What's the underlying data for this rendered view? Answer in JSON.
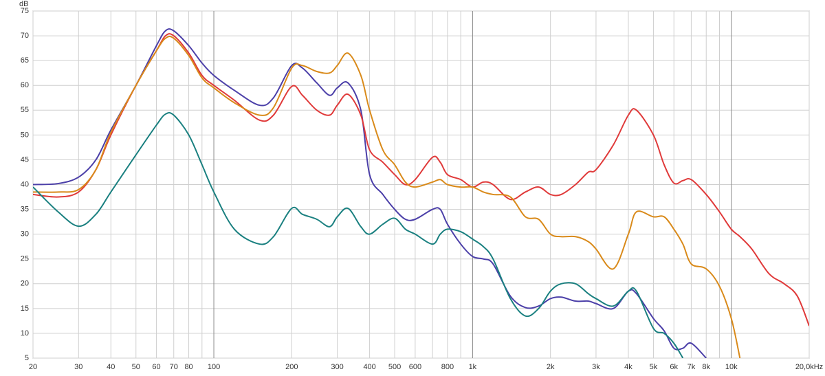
{
  "chart_data": {
    "type": "line",
    "y_axis_label": "dB",
    "log_x": true,
    "grid": true,
    "xlim": [
      20,
      20000
    ],
    "ylim": [
      5,
      75
    ],
    "yticks": [
      5,
      10,
      15,
      20,
      25,
      30,
      35,
      40,
      45,
      50,
      55,
      60,
      65,
      70,
      75
    ],
    "xticks": [
      20,
      30,
      40,
      50,
      60,
      70,
      80,
      100,
      200,
      300,
      400,
      500,
      600,
      800,
      {
        "value": 1000,
        "label": "1k"
      },
      {
        "value": 2000,
        "label": "2k"
      },
      {
        "value": 3000,
        "label": "3k"
      },
      {
        "value": 4000,
        "label": "4k"
      },
      {
        "value": 5000,
        "label": "5k"
      },
      {
        "value": 6000,
        "label": "6k"
      },
      {
        "value": 7000,
        "label": "7k"
      },
      {
        "value": 8000,
        "label": "8k"
      },
      {
        "value": 10000,
        "label": "10k"
      },
      {
        "value": 20000,
        "label": "20,0kHz"
      }
    ],
    "xgrid": [
      90,
      700,
      900,
      9000
    ],
    "x": [
      20,
      25,
      30,
      35,
      40,
      50,
      60,
      65,
      70,
      80,
      90,
      100,
      120,
      150,
      170,
      200,
      220,
      250,
      280,
      300,
      330,
      370,
      400,
      450,
      500,
      550,
      600,
      700,
      750,
      800,
      900,
      1000,
      1100,
      1200,
      1400,
      1600,
      1800,
      2000,
      2200,
      2500,
      2800,
      3000,
      3500,
      4000,
      4300,
      5000,
      5500,
      6000,
      6500,
      7000,
      8000,
      9000,
      10000,
      10800,
      12000,
      14000,
      16000,
      18000,
      20000
    ],
    "series": [
      {
        "color": "#4b3fa8",
        "values": [
          40,
          40.2,
          41.5,
          45,
          51,
          60,
          68,
          71,
          71,
          68,
          64.5,
          62,
          59,
          56,
          57.5,
          64,
          63.5,
          60.5,
          58,
          59.5,
          60.5,
          55,
          42,
          38,
          35,
          33,
          33,
          35,
          35,
          32,
          28,
          25.5,
          25,
          24,
          17.5,
          15.2,
          15.5,
          17,
          17.3,
          16.5,
          16.5,
          16,
          15,
          18.5,
          18,
          13,
          10.5,
          7,
          7,
          8,
          5,
          null,
          null,
          null,
          null,
          null,
          null,
          null,
          null
        ]
      },
      {
        "color": "#e03a3a",
        "values": [
          38,
          37.5,
          38.5,
          43,
          50,
          60,
          67,
          70,
          70,
          66.5,
          62,
          60,
          57,
          53,
          54,
          59.8,
          58,
          55,
          54,
          56,
          58.2,
          54,
          47,
          44.5,
          42,
          40,
          41,
          45.5,
          44.5,
          42,
          41,
          39.5,
          40.5,
          40,
          37,
          38.5,
          39.5,
          38,
          38,
          40,
          42.5,
          43,
          48,
          54,
          55,
          50,
          44,
          40.3,
          40.8,
          41,
          38,
          34.5,
          31,
          29.5,
          27,
          22,
          20,
          17.5,
          11.5
        ]
      },
      {
        "color": "#d98a1a",
        "values": [
          38.5,
          38.5,
          39,
          43,
          50.5,
          60,
          67,
          69.5,
          69.5,
          66,
          61.5,
          59.5,
          56.5,
          54,
          55.5,
          63.5,
          64,
          62.8,
          62.5,
          64,
          66.5,
          62,
          55,
          47,
          44,
          40.5,
          39.5,
          40.5,
          41,
          40,
          39.5,
          39.5,
          38.5,
          38,
          37.5,
          33.5,
          33,
          30,
          29.5,
          29.5,
          28.5,
          27,
          23,
          30,
          34.5,
          33.5,
          33.5,
          31,
          28,
          24,
          23,
          19.5,
          13,
          5,
          null,
          null,
          null,
          null,
          null
        ]
      },
      {
        "color": "#1a8080",
        "values": [
          39.5,
          34.5,
          31.6,
          34,
          38.5,
          46,
          52,
          54.2,
          54,
          50,
          44,
          38.5,
          31,
          28,
          29.5,
          35.2,
          34,
          33,
          31.5,
          33.5,
          35.2,
          31.5,
          30,
          32,
          33.2,
          31,
          30,
          28,
          30,
          31,
          30.5,
          29,
          27.5,
          25,
          17,
          13.5,
          15,
          18.5,
          20,
          20,
          18,
          17,
          15.5,
          18.5,
          18.5,
          11,
          10,
          8,
          5,
          null,
          null,
          null,
          null,
          null,
          null,
          null,
          null,
          null,
          null
        ]
      }
    ]
  }
}
